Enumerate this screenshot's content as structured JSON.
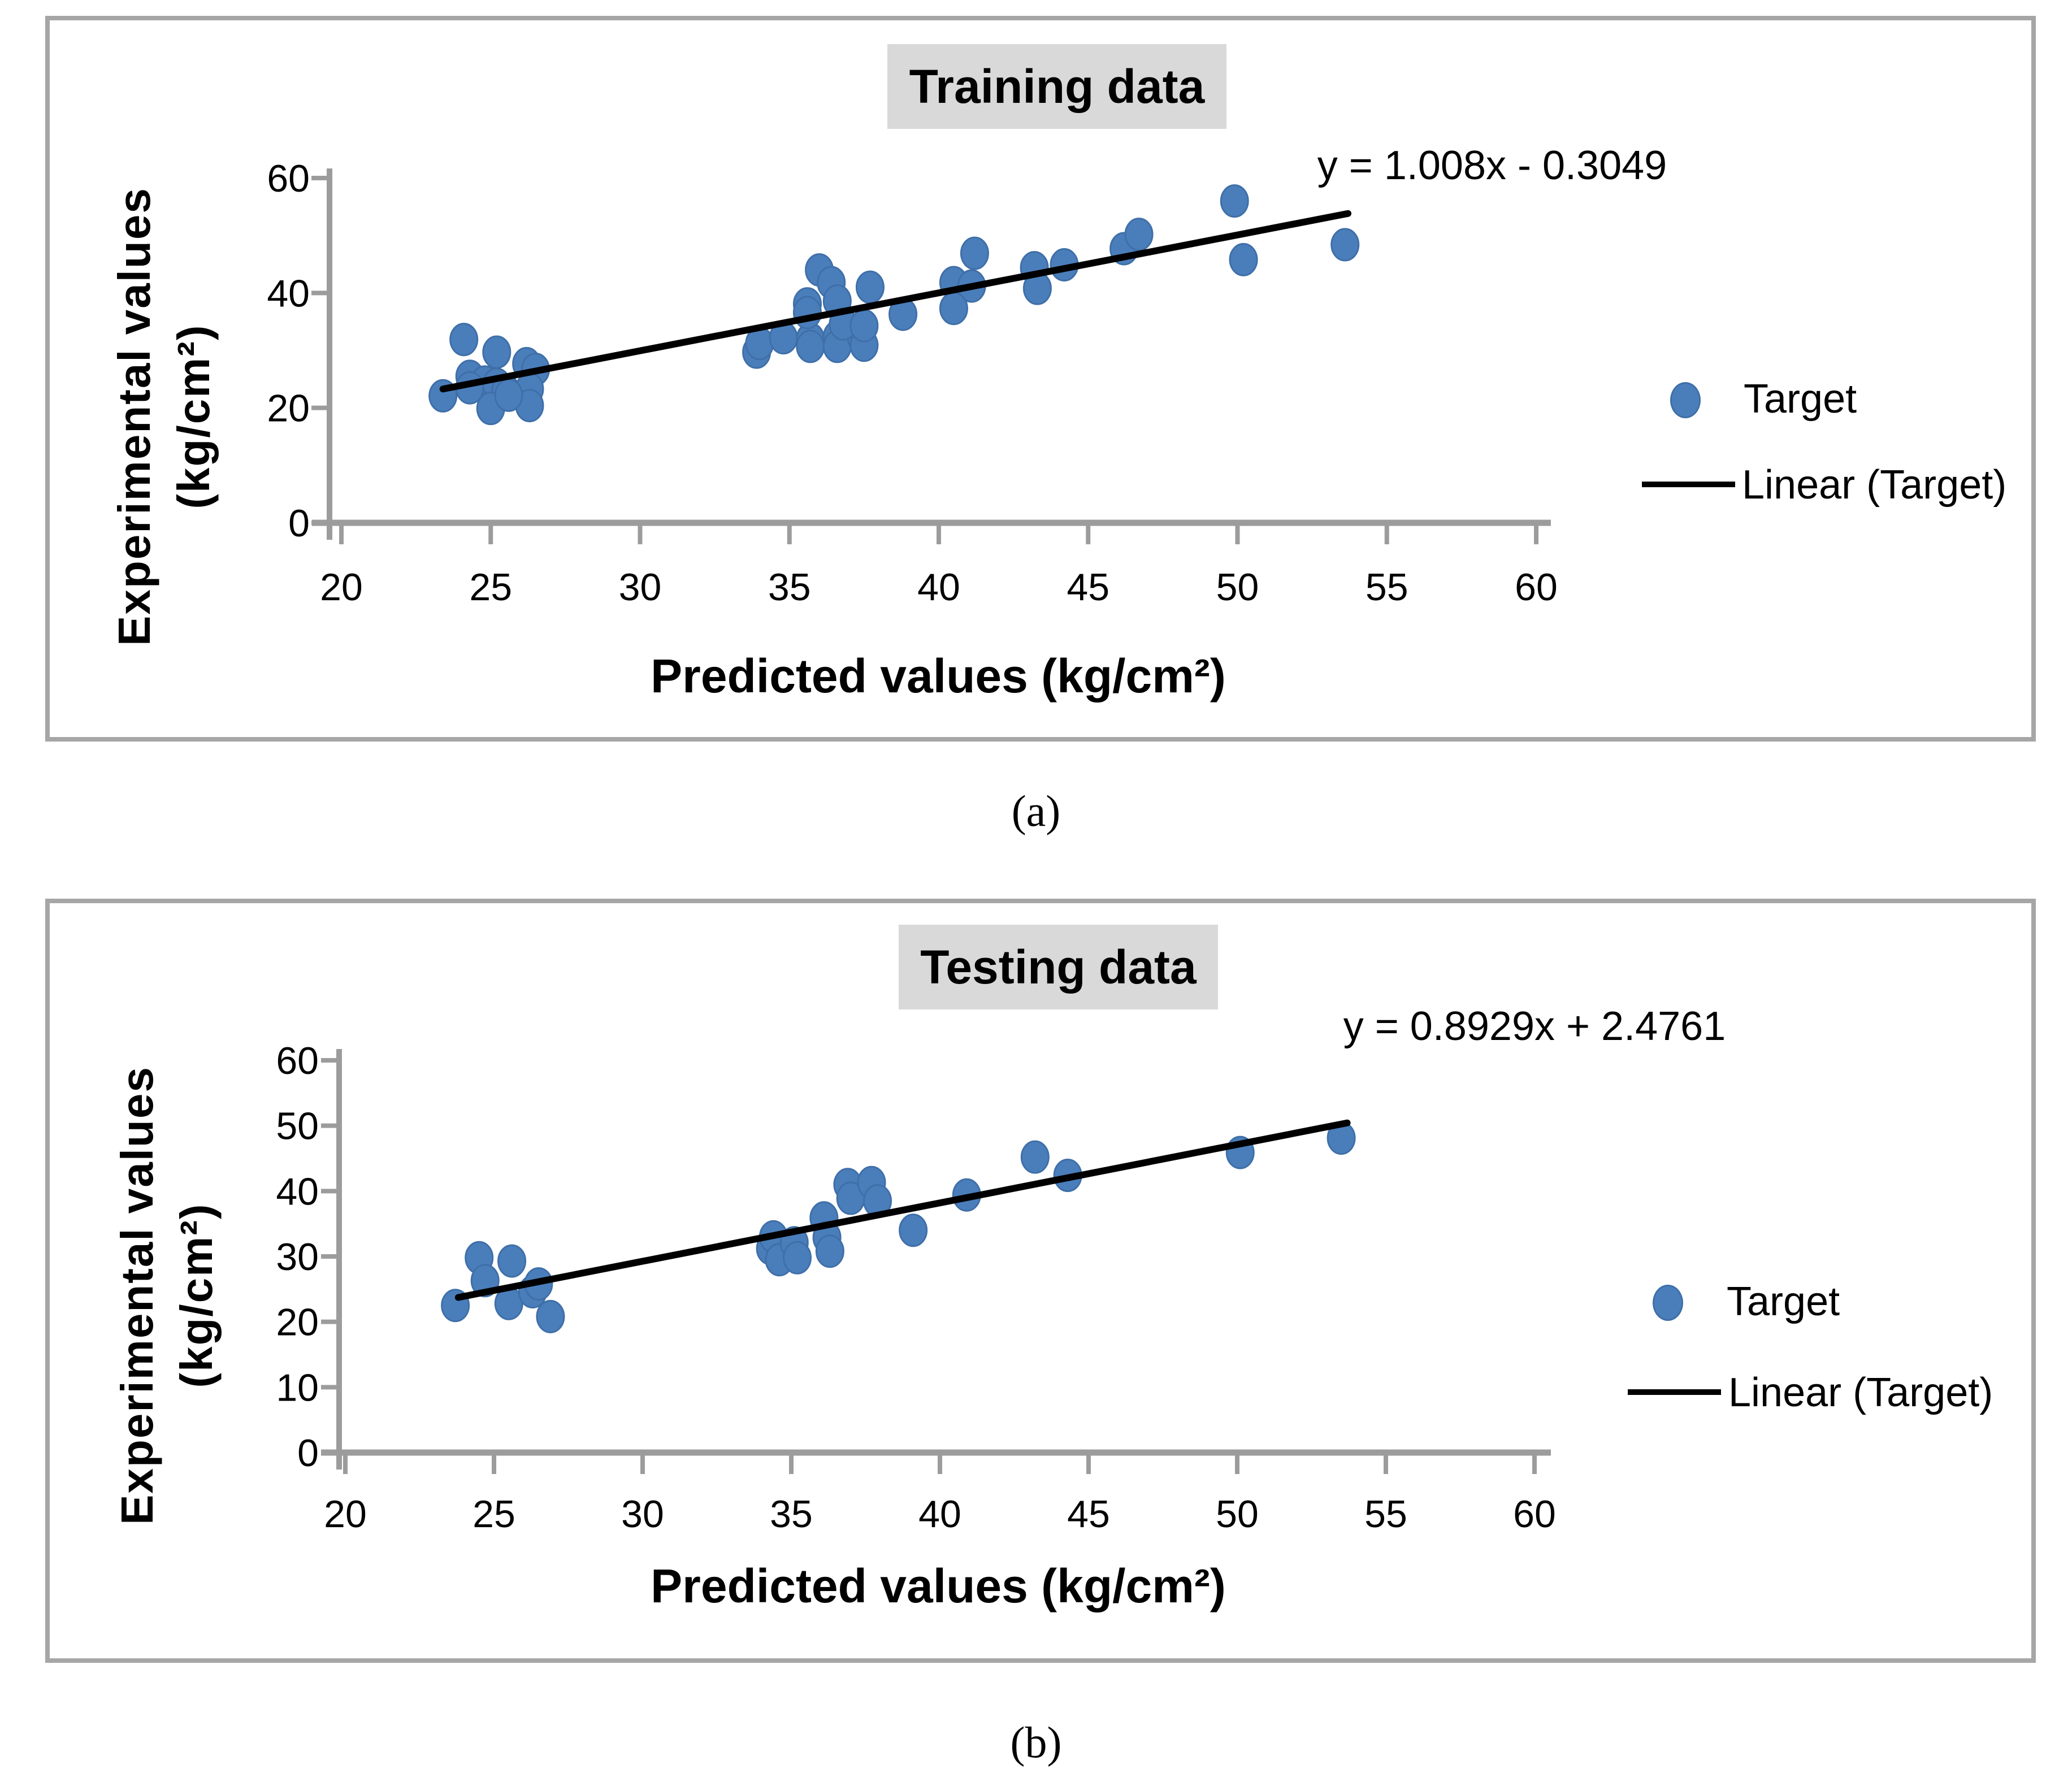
{
  "colors": {
    "marker_fill": "#4a7ebb",
    "marker_stroke": "#3f6fa8",
    "trend_line": "#000000",
    "axis": "#9c9c9c",
    "title_background": "#d9d9d9",
    "box_border": "#a6a6a6",
    "text": "#000000"
  },
  "captions": {
    "a": "(a)",
    "b": "(b)"
  },
  "charts": [
    {
      "id": "training",
      "title": "Training data",
      "equation": "y = 1.008x - 0.3049",
      "x_axis_label": "Predicted values (kg/cm²)",
      "y_axis_label_line1": "Experimental values",
      "y_axis_label_line2": "(kg/cm²)",
      "legend": {
        "marker_label": "Target",
        "line_label": "Linear (Target)"
      },
      "chart_data": {
        "type": "scatter",
        "title": "Training data",
        "xlabel": "Predicted values (kg/cm²)",
        "ylabel": "Experimental values (kg/cm²)",
        "xlim": [
          20,
          60
        ],
        "ylim": [
          0,
          60
        ],
        "x_ticks": [
          20,
          25,
          30,
          35,
          40,
          45,
          50,
          55,
          60
        ],
        "y_ticks": [
          0,
          20,
          40,
          60
        ],
        "grid": false,
        "legend_position": "right",
        "series": [
          {
            "name": "Target",
            "points": [
              [
                23.4,
                22.1
              ],
              [
                24.1,
                31.9
              ],
              [
                25.2,
                29.7
              ],
              [
                24.3,
                25.5
              ],
              [
                24.8,
                24.5
              ],
              [
                24.3,
                23.5
              ],
              [
                25.2,
                24.1
              ],
              [
                25.5,
                23.0
              ],
              [
                25.0,
                19.9
              ],
              [
                26.2,
                27.7
              ],
              [
                26.5,
                26.7
              ],
              [
                26.3,
                23.3
              ],
              [
                26.3,
                20.4
              ],
              [
                25.6,
                22.2
              ],
              [
                33.9,
                29.7
              ],
              [
                34.0,
                31.2
              ],
              [
                34.8,
                32.2
              ],
              [
                35.7,
                32.0
              ],
              [
                35.7,
                30.7
              ],
              [
                36.6,
                32.4
              ],
              [
                36.6,
                30.7
              ],
              [
                37.4,
                32.4
              ],
              [
                37.5,
                30.9
              ],
              [
                35.6,
                38.1
              ],
              [
                35.6,
                36.6
              ],
              [
                36.0,
                44.0
              ],
              [
                36.4,
                41.8
              ],
              [
                36.6,
                38.6
              ],
              [
                36.8,
                34.6
              ],
              [
                37.5,
                34.3
              ],
              [
                37.7,
                41.0
              ],
              [
                38.8,
                36.3
              ],
              [
                40.5,
                41.8
              ],
              [
                41.1,
                41.2
              ],
              [
                41.2,
                46.9
              ],
              [
                40.5,
                37.3
              ],
              [
                43.2,
                44.4
              ],
              [
                43.3,
                40.8
              ],
              [
                44.2,
                44.9
              ],
              [
                46.2,
                47.7
              ],
              [
                46.7,
                50.2
              ],
              [
                49.9,
                56.0
              ],
              [
                50.2,
                45.8
              ],
              [
                53.6,
                48.4
              ]
            ]
          }
        ],
        "trendline": {
          "label": "Linear (Target)",
          "slope": 1.008,
          "intercept": -0.3049,
          "x_range": [
            23.4,
            53.7
          ],
          "equation_text": "y = 1.008x - 0.3049"
        }
      }
    },
    {
      "id": "testing",
      "title": "Testing data",
      "equation": "y = 0.8929x + 2.4761",
      "x_axis_label": "Predicted values (kg/cm²)",
      "y_axis_label_line1": "Experimental values",
      "y_axis_label_line2": "(kg/cm²)",
      "legend": {
        "marker_label": "Target",
        "line_label": "Linear (Target)"
      },
      "chart_data": {
        "type": "scatter",
        "title": "Testing data",
        "xlabel": "Predicted values (kg/cm²)",
        "ylabel": "Experimental values (kg/cm²)",
        "xlim": [
          20,
          60
        ],
        "ylim": [
          0,
          60
        ],
        "x_ticks": [
          20,
          25,
          30,
          35,
          40,
          45,
          50,
          55,
          60
        ],
        "y_ticks": [
          0,
          10,
          20,
          30,
          40,
          50,
          60
        ],
        "grid": false,
        "legend_position": "right",
        "series": [
          {
            "name": "Target",
            "points": [
              [
                23.7,
                22.5
              ],
              [
                24.5,
                29.8
              ],
              [
                24.7,
                26.3
              ],
              [
                25.6,
                29.3
              ],
              [
                25.5,
                22.8
              ],
              [
                26.3,
                24.6
              ],
              [
                26.5,
                25.8
              ],
              [
                26.9,
                20.8
              ],
              [
                34.3,
                31.2
              ],
              [
                34.4,
                33.0
              ],
              [
                34.6,
                29.5
              ],
              [
                35.1,
                32.1
              ],
              [
                35.2,
                29.8
              ],
              [
                36.1,
                35.9
              ],
              [
                36.2,
                32.9
              ],
              [
                36.3,
                30.8
              ],
              [
                36.9,
                41.0
              ],
              [
                37.0,
                38.9
              ],
              [
                37.7,
                41.3
              ],
              [
                37.9,
                38.5
              ],
              [
                39.1,
                34.0
              ],
              [
                40.9,
                39.4
              ],
              [
                43.2,
                45.2
              ],
              [
                44.3,
                42.4
              ],
              [
                50.1,
                45.9
              ],
              [
                53.5,
                48.1
              ]
            ]
          }
        ],
        "trendline": {
          "label": "Linear (Target)",
          "slope": 0.8929,
          "intercept": 2.4761,
          "x_range": [
            23.8,
            53.7
          ],
          "equation_text": "y = 0.8929x + 2.4761"
        }
      }
    }
  ]
}
